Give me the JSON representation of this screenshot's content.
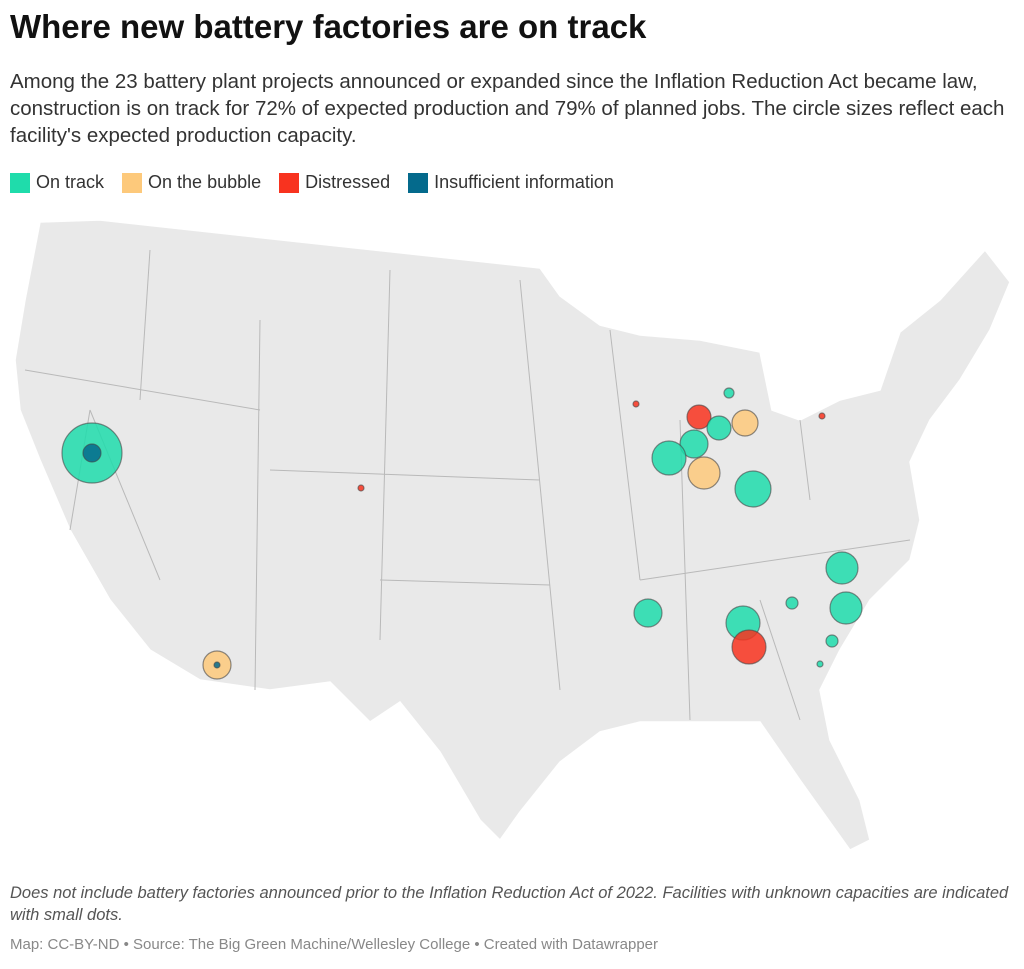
{
  "header": {
    "title": "Where new battery factories are on track",
    "subtitle": "Among the 23 battery plant projects announced or expanded since the Inflation Reduction Act became law, construction is on track for 72% of expected production and 79% of planned jobs. The circle sizes reflect each facility's expected production capacity."
  },
  "legend": [
    {
      "label": "On track",
      "color": "#1fdcab"
    },
    {
      "label": "On the bubble",
      "color": "#fdc97b"
    },
    {
      "label": "Distressed",
      "color": "#f8331f"
    },
    {
      "label": "Insufficient information",
      "color": "#046a8c"
    }
  ],
  "footer": {
    "note": "Does not include battery factories announced prior to the Inflation Reduction Act of 2022. Facilities with unknown capacities are indicated with small dots.",
    "credits": "Map: CC-BY-ND • Source: The Big Green Machine/Wellesley College • Created with Datawrapper"
  }
}
